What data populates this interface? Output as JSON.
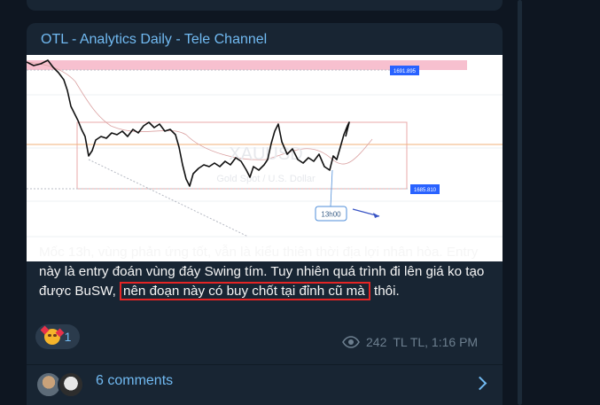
{
  "post": {
    "channel_title": "OTL - Analytics Daily - Tele Channel",
    "text_before": "Mốc 13h, vùng phản ứng tốt, vẫn là kiểu thiên thời địa lợi nhân hòa. Entry này là entry đoán vùng đáy Swing tím. Tuy nhiên quá trình đi lên giá ko tạo được BuSW, ",
    "text_highlighted": "nên đoạn này có buy chốt tại đỉnh cũ mà",
    "text_after": " thôi.",
    "reaction_count": "1",
    "views": "242",
    "author_time": "TL TL, 1:16 PM",
    "comments_label": "6 comments"
  },
  "chart": {
    "price_high": "1691.895",
    "price_low": "1685.810",
    "time_callout": "13h00",
    "watermark_symbol": "XAUUSD",
    "watermark_desc": "Gold Spot / U.S. Dollar"
  },
  "icons": {
    "views": "eye-icon",
    "comments_open": "chevron-right-icon",
    "reaction": "smiling-face-with-hearts-icon"
  },
  "colors": {
    "background": "#0e1621",
    "card": "#182533",
    "accent": "#71baf2",
    "highlight_box": "#e32525",
    "meta_text": "#6d7f8f"
  }
}
